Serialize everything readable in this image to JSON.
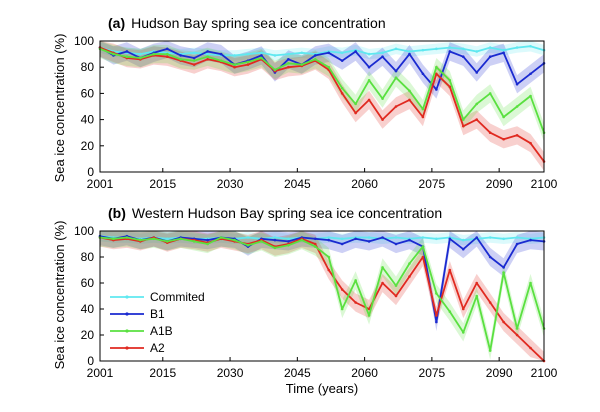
{
  "colors": {
    "Commited": "#5fe8f0",
    "B1": "#1a2ad0",
    "A1B": "#5ae040",
    "A2": "#e02a20"
  },
  "xlabel": "Time (years)",
  "chart_data": [
    {
      "type": "line",
      "tag": "(a)",
      "title": "Hudson Bay spring sea ice concentration",
      "xlabel": "",
      "ylabel": "Sea ice concentration (%)",
      "xlim": [
        2001,
        2100
      ],
      "ylim": [
        0,
        100
      ],
      "xticks": [
        2001,
        2015,
        2030,
        2045,
        2060,
        2075,
        2090,
        2100
      ],
      "yticks": [
        0,
        20,
        40,
        60,
        80,
        100
      ],
      "x": [
        2001,
        2004,
        2007,
        2010,
        2013,
        2016,
        2019,
        2022,
        2025,
        2028,
        2031,
        2034,
        2037,
        2040,
        2043,
        2046,
        2049,
        2052,
        2055,
        2058,
        2061,
        2064,
        2067,
        2070,
        2073,
        2076,
        2079,
        2082,
        2085,
        2088,
        2091,
        2094,
        2097,
        2100
      ],
      "series": [
        {
          "name": "Commited",
          "values": [
            95,
            92,
            91,
            90,
            92,
            91,
            90,
            91,
            90,
            89,
            89,
            90,
            91,
            89,
            90,
            91,
            90,
            92,
            91,
            93,
            90,
            91,
            94,
            92,
            93,
            94,
            95,
            94,
            92,
            95,
            93,
            95,
            96,
            93
          ]
        },
        {
          "name": "B1",
          "values": [
            95,
            89,
            92,
            87,
            91,
            94,
            89,
            87,
            92,
            90,
            82,
            85,
            89,
            76,
            86,
            82,
            89,
            91,
            85,
            92,
            80,
            88,
            77,
            90,
            75,
            63,
            92,
            88,
            76,
            88,
            91,
            67,
            75,
            83
          ]
        },
        {
          "name": "A2",
          "values": [
            95,
            91,
            87,
            86,
            89,
            88,
            85,
            82,
            86,
            84,
            80,
            82,
            86,
            77,
            80,
            81,
            85,
            78,
            60,
            45,
            55,
            40,
            50,
            55,
            42,
            75,
            65,
            35,
            40,
            30,
            25,
            28,
            22,
            8
          ]
        },
        {
          "name": "A1B",
          "values": [
            94,
            90,
            88,
            87,
            90,
            90,
            86,
            85,
            88,
            85,
            82,
            84,
            87,
            78,
            83,
            82,
            86,
            80,
            64,
            52,
            70,
            56,
            72,
            62,
            48,
            80,
            70,
            40,
            52,
            60,
            42,
            50,
            58,
            30
          ]
        }
      ]
    },
    {
      "type": "line",
      "tag": "(b)",
      "title": "Western Hudson Bay spring sea ice concentration",
      "xlabel": "Time (years)",
      "ylabel": "Sea ice concentration (%)",
      "xlim": [
        2001,
        2100
      ],
      "ylim": [
        0,
        100
      ],
      "xticks": [
        2001,
        2015,
        2030,
        2045,
        2060,
        2075,
        2090,
        2100
      ],
      "yticks": [
        0,
        20,
        40,
        60,
        80,
        100
      ],
      "legend": {
        "placement": "left",
        "entries": [
          "Commited",
          "B1",
          "A1B",
          "A2"
        ]
      },
      "x": [
        2001,
        2004,
        2007,
        2010,
        2013,
        2016,
        2019,
        2022,
        2025,
        2028,
        2031,
        2034,
        2037,
        2040,
        2043,
        2046,
        2049,
        2052,
        2055,
        2058,
        2061,
        2064,
        2067,
        2070,
        2073,
        2076,
        2079,
        2082,
        2085,
        2088,
        2091,
        2094,
        2097,
        2100
      ],
      "series": [
        {
          "name": "Commited",
          "values": [
            96,
            95,
            95,
            94,
            95,
            94,
            95,
            94,
            94,
            95,
            94,
            95,
            94,
            95,
            94,
            95,
            94,
            95,
            94,
            95,
            95,
            94,
            95,
            94,
            95,
            94,
            95,
            93,
            94,
            95,
            94,
            95,
            94,
            95
          ]
        },
        {
          "name": "B1",
          "values": [
            96,
            94,
            96,
            93,
            95,
            92,
            95,
            94,
            93,
            95,
            94,
            88,
            94,
            93,
            92,
            95,
            94,
            93,
            90,
            94,
            92,
            95,
            90,
            93,
            88,
            30,
            94,
            86,
            95,
            80,
            72,
            90,
            93,
            92
          ]
        },
        {
          "name": "A2",
          "values": [
            95,
            93,
            94,
            92,
            95,
            91,
            94,
            93,
            91,
            94,
            92,
            90,
            93,
            88,
            90,
            94,
            90,
            70,
            55,
            45,
            40,
            60,
            50,
            65,
            80,
            35,
            70,
            40,
            60,
            45,
            30,
            20,
            10,
            0
          ]
        },
        {
          "name": "A1B",
          "values": [
            95,
            94,
            95,
            93,
            94,
            92,
            94,
            92,
            90,
            95,
            93,
            89,
            92,
            87,
            89,
            93,
            88,
            80,
            40,
            62,
            35,
            72,
            58,
            75,
            88,
            52,
            38,
            22,
            50,
            8,
            68,
            25,
            60,
            25
          ]
        }
      ]
    }
  ]
}
